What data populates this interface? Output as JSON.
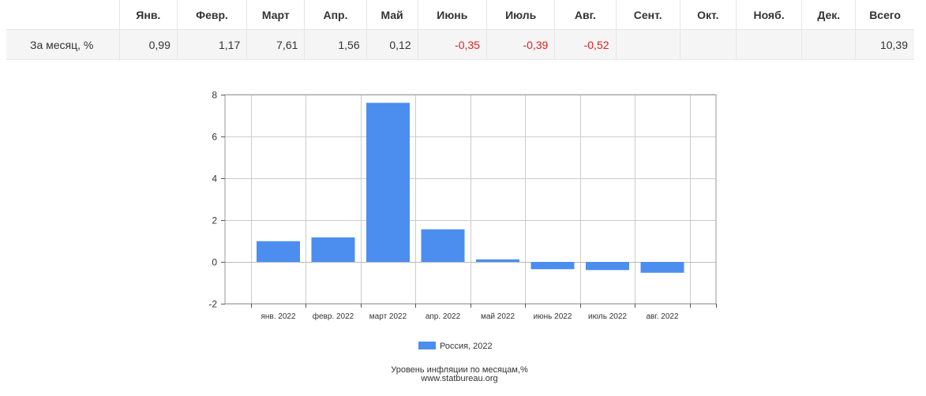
{
  "table": {
    "corner": "",
    "headers": [
      "Янв.",
      "Февр.",
      "Март",
      "Апр.",
      "Май",
      "Июнь",
      "Июль",
      "Авг.",
      "Сент.",
      "Окт.",
      "Нояб.",
      "Дек.",
      "Всего"
    ],
    "row_label": "За месяц, %",
    "values": [
      "0,99",
      "1,17",
      "7,61",
      "1,56",
      "0,12",
      "-0,35",
      "-0,39",
      "-0,52",
      "",
      "",
      "",
      "",
      "10,39"
    ]
  },
  "chart_data": {
    "type": "bar",
    "categories": [
      "янв. 2022",
      "февр. 2022",
      "март 2022",
      "апр. 2022",
      "май 2022",
      "июнь 2022",
      "июль 2022",
      "авг. 2022"
    ],
    "series": [
      {
        "name": "Россия, 2022",
        "values": [
          0.99,
          1.17,
          7.61,
          1.56,
          0.12,
          -0.35,
          -0.39,
          -0.52
        ]
      }
    ],
    "ylim": [
      -2,
      8
    ],
    "yticks": [
      -2,
      0,
      2,
      4,
      6,
      8
    ],
    "grid": true,
    "legend": "bottom-center",
    "bar_color": "#4b8ef0",
    "caption": "Уровень инфляции по месяцам,%",
    "source": "www.statbureau.org"
  }
}
